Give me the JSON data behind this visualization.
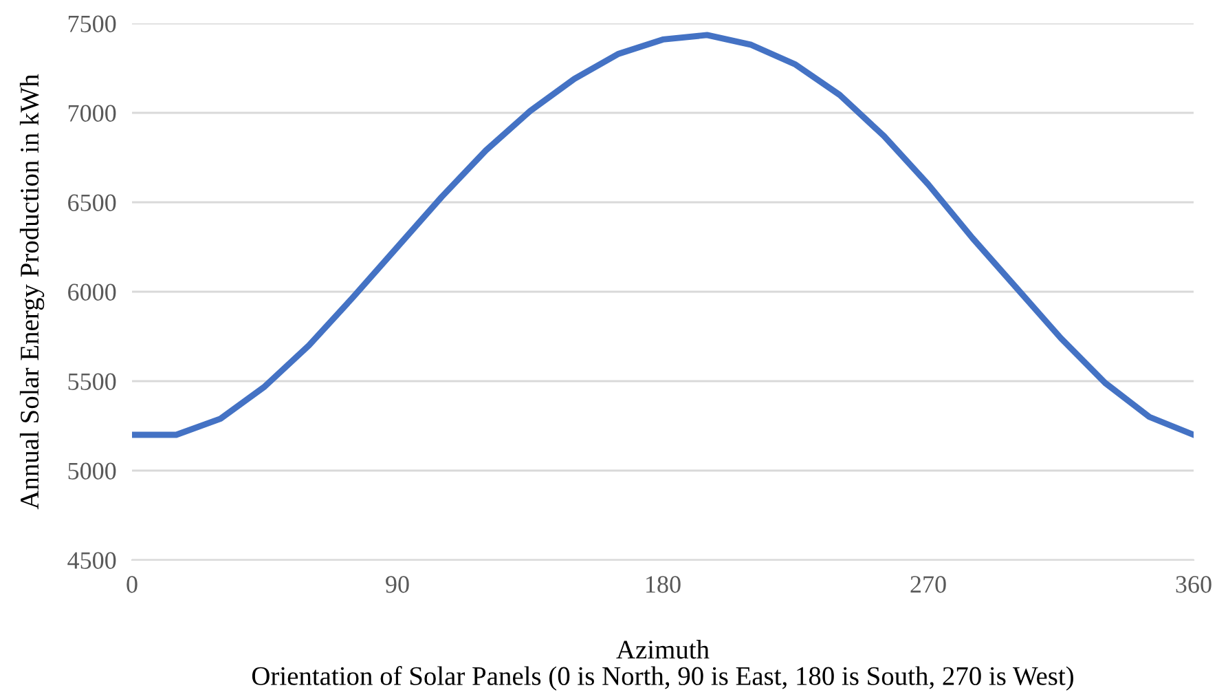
{
  "chart_data": {
    "type": "line",
    "xlabel": "Azimuth\nOrientation of Solar Panels (0 is North, 90 is East, 180 is South, 270 is West)",
    "ylabel": "Annual Solar Energy Production in kWh",
    "x": [
      0,
      15,
      30,
      45,
      60,
      75,
      90,
      105,
      120,
      135,
      150,
      165,
      180,
      195,
      210,
      225,
      240,
      255,
      270,
      285,
      300,
      315,
      330,
      345,
      360
    ],
    "series": [
      {
        "color": "#4472c4",
        "values": [
          5200,
          5200,
          5290,
          5470,
          5700,
          5970,
          6250,
          6530,
          6790,
          7010,
          7190,
          7330,
          7410,
          7435,
          7380,
          7270,
          7100,
          6870,
          6600,
          6300,
          6020,
          5740,
          5490,
          5300,
          5200
        ]
      }
    ],
    "xlim": [
      0,
      360
    ],
    "xticks": [
      0,
      90,
      180,
      270,
      360
    ],
    "ylim": [
      4500,
      7500
    ],
    "yticks": [
      4500,
      5000,
      5500,
      6000,
      6500,
      7000,
      7500
    ],
    "grid": "y",
    "legend": false,
    "marker": "none",
    "line_style": "solid"
  }
}
